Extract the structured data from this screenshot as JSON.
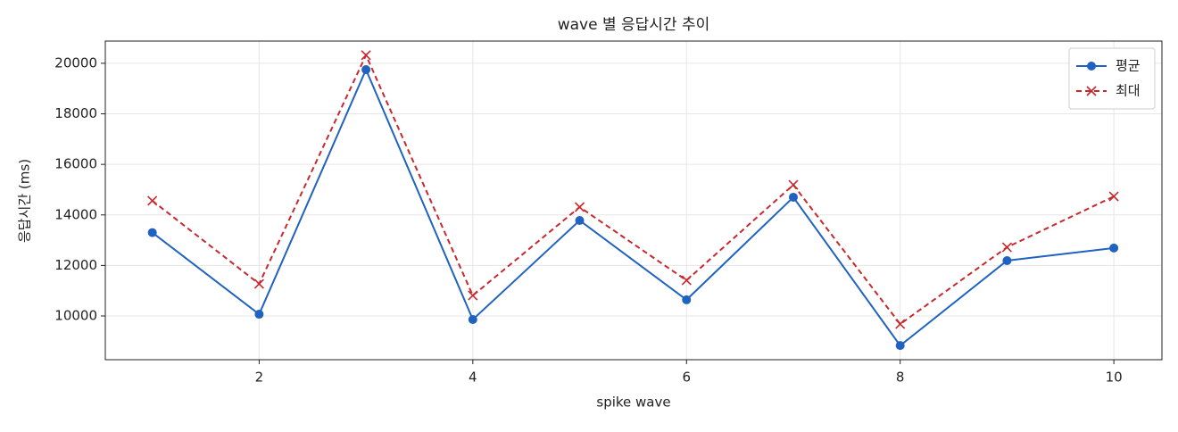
{
  "chart_data": {
    "type": "line",
    "title": "wave 별 응답시간 추이",
    "x_label": "spike wave",
    "y_label": "응답시간 (ms)",
    "x": [
      1,
      2,
      3,
      4,
      5,
      6,
      7,
      8,
      9,
      10
    ],
    "series": [
      {
        "name": "평균",
        "color": "#1f62c0",
        "marker": "o",
        "dashed": false,
        "values": [
          13300,
          10070,
          19750,
          9860,
          13780,
          10640,
          14700,
          8830,
          12190,
          12690
        ]
      },
      {
        "name": "최대",
        "color": "#c8282d",
        "marker": "x",
        "dashed": true,
        "values": [
          14560,
          11270,
          20320,
          10810,
          14310,
          11410,
          15190,
          9680,
          12720,
          14730
        ]
      }
    ],
    "xlim": [
      0.56,
      10.45
    ],
    "ylim": [
      8270,
      20880
    ],
    "xticks": [
      2,
      4,
      6,
      8,
      10
    ],
    "yticks": [
      10000,
      12000,
      14000,
      16000,
      18000,
      20000
    ],
    "grid": true,
    "legend": "upper right"
  }
}
